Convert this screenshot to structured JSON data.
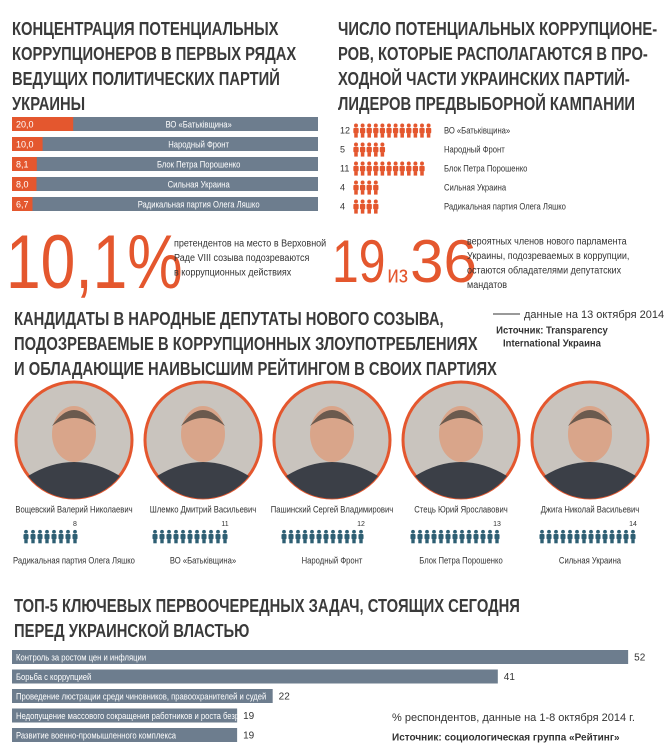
{
  "chart_data": [
    {
      "type": "bar",
      "title_lines": [
        "КОНЦЕНТРАЦИЯ ПОТЕНЦИАЛЬНЫХ",
        "КОРРУПЦИОНЕРОВ В ПЕРВЫХ РЯДАХ",
        "ВЕДУЩИХ ПОЛИТИЧЕСКИХ ПАРТИЙ",
        "УКРАИНЫ"
      ],
      "categories": [
        "ВО «Батьківщина»",
        "Народный Фронт",
        "Блок Петра Порошенко",
        "Сильная Украина",
        "Радикальная партия Олега Ляшко"
      ],
      "values": [
        20,
        10,
        8.1,
        8,
        6.7
      ],
      "value_labels": [
        "20,0",
        "10,0",
        "8,1",
        "8,0",
        "6,7"
      ],
      "color": "#e4572e",
      "track_color": "#6d7d8e",
      "xlim": [
        0,
        100
      ]
    },
    {
      "type": "pictogram",
      "title_lines": [
        "ЧИСЛО ПОТЕНЦИАЛЬНЫХ КОРРУПЦИОНЕ-",
        "РОВ, КОТОРЫЕ РАСПОЛАГАЮТСЯ В ПРО-",
        "ХОДНОЙ ЧАСТИ УКРАИНСКИХ ПАРТИЙ-",
        "ЛИДЕРОВ ПРЕДВЫБОРНОЙ КАМПАНИИ"
      ],
      "categories": [
        "ВО «Батьківщина»",
        "Народный Фронт",
        "Блок Петра Порошенко",
        "Сильная Украина",
        "Радикальная партия Олега Ляшко"
      ],
      "values": [
        12,
        5,
        11,
        4,
        4
      ],
      "color": "#e4572e"
    },
    {
      "type": "bar",
      "title_lines": [
        "ТОП-5 КЛЮЧЕВЫХ ПЕРВООЧЕРЕДНЫХ ЗАДАЧ, СТОЯЩИХ СЕГОДНЯ",
        "ПЕРЕД УКРАИНСКОЙ ВЛАСТЬЮ"
      ],
      "categories": [
        "Контроль за ростом цен и инфляции",
        "Борьба с коррупцией",
        "Проведение люстрации среди чиновников, правоохранителей и судей",
        "Недопущение массового сокращения работников и роста безработицы",
        "Развитие военно-промышленного комплекса"
      ],
      "values": [
        52,
        41,
        22,
        19,
        19
      ],
      "color": "#6d7d8e",
      "xlim": [
        0,
        53
      ],
      "note": "% респондентов, данные на 1-8 октября 2014 г.",
      "source": "Источник: социологическая группа «Рейтинг»"
    }
  ],
  "stats": {
    "share": {
      "value": "10,1%",
      "lines": [
        "претендентов на место в Верховной",
        "Раде VIII созыва подозреваются",
        "в коррупционных действиях"
      ]
    },
    "ratio": {
      "part": "19",
      "sep": "из",
      "total": "36",
      "lines": [
        "вероятных членов нового парламента",
        "Украины, подозреваемых в коррупции,",
        "остаются обладателями депутатских",
        "мандатов"
      ]
    },
    "date": "данные на 13 октября 2014 г.",
    "source_lines": [
      "Источник: Transparency",
      "International Украина"
    ]
  },
  "candidates": {
    "title_lines": [
      "КАНДИДАТЫ В НАРОДНЫЕ ДЕПУТАТЫ НОВОГО СОЗЫВА,",
      "ПОДОЗРЕВАЕМЫЕ В КОРРУПЦИОННЫХ ЗЛОУПОТРЕБЛЕНИЯХ",
      "И ОБЛАДАЮЩИЕ НАИВЫСШИМ РЕЙТИНГОМ В СВОИХ ПАРТИЯХ"
    ],
    "color": "#2e5f73",
    "people": [
      {
        "name": "Вощевский Валерий Николаевич",
        "rank": 8,
        "party": "Радикальная партия Олега Ляшко"
      },
      {
        "name": "Шлемко Дмитрий Васильевич",
        "rank": 11,
        "party": "ВО «Батьківщина»"
      },
      {
        "name": "Пашинский Сергей Владимирович",
        "rank": 12,
        "party": "Народный Фронт"
      },
      {
        "name": "Стець Юрий Ярославович",
        "rank": 13,
        "party": "Блок Петра Порошенко"
      },
      {
        "name": "Джига Николай Васильевич",
        "rank": 14,
        "party": "Сильная Украина"
      }
    ]
  }
}
